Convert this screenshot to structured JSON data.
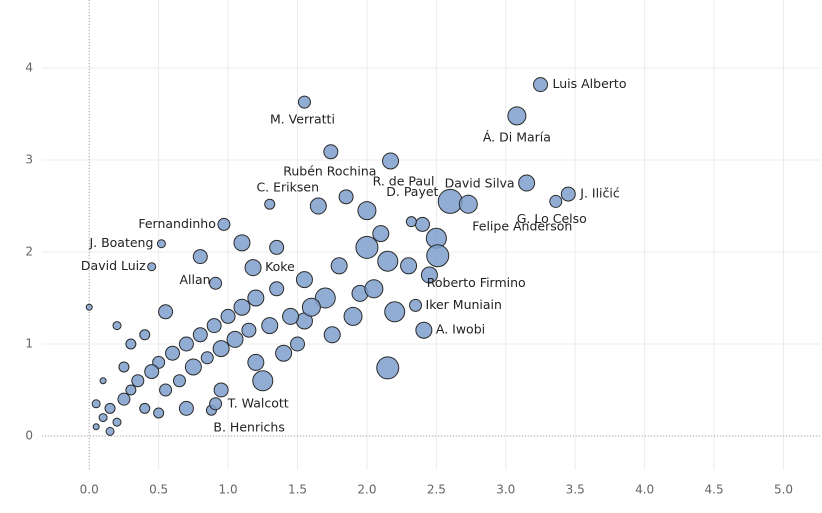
{
  "chart_data": {
    "type": "scatter",
    "color": "#7e9fcd",
    "edge_color": "#2a2a2a",
    "grid": true,
    "xlim": [
      -0.34,
      5.27
    ],
    "ylim": [
      -0.37,
      4.74
    ],
    "xticks": [
      {
        "value": 0,
        "label": "0.0"
      },
      0.5,
      {
        "value": 1,
        "label": "1.0"
      },
      1.5,
      {
        "value": 2,
        "label": "2.0"
      },
      2.5,
      {
        "value": 3,
        "label": "3.0"
      },
      3.5,
      {
        "value": 4,
        "label": "4.0"
      },
      4.5,
      {
        "value": 5,
        "label": "5.0"
      }
    ],
    "yticks": [
      0,
      1,
      2,
      3,
      4
    ],
    "labels": [
      "Luis Alberto",
      "Á. Di María",
      "M. Verratti",
      "Rubén Rochina",
      "R. de Paul",
      "D. Payet",
      "C. Eriksen",
      "David Silva",
      "J. Iličić",
      "G. Lo Celso",
      "Felipe Anderson",
      "Fernandinho",
      "J. Boateng",
      "David Luiz",
      "Allan",
      "Koke",
      "Roberto Firmino",
      "Iker Muniain",
      "A. Iwobi",
      "T. Walcott",
      "B. Henrichs",
      null,
      null,
      null,
      null,
      null,
      null,
      null,
      null,
      null,
      null,
      null,
      null,
      null,
      null,
      null,
      null,
      null,
      null,
      null,
      null,
      null,
      null,
      null,
      null,
      null,
      null,
      null,
      null,
      null,
      null,
      null,
      null,
      null,
      null,
      null,
      null,
      null,
      null,
      null,
      null,
      null,
      null,
      null,
      null,
      null,
      null,
      null,
      null,
      null,
      null,
      null,
      null,
      null,
      null,
      null,
      null,
      null,
      null,
      null,
      null,
      null,
      null,
      null,
      null,
      null,
      null,
      null,
      null
    ],
    "x": [
      3.25,
      3.08,
      1.55,
      1.74,
      2.17,
      2.32,
      1.3,
      3.15,
      3.45,
      3.36,
      2.73,
      0.97,
      0.52,
      0.45,
      0.91,
      1.18,
      2.51,
      2.35,
      2.41,
      0.91,
      0.88,
      0.05,
      0.1,
      0.15,
      0.2,
      0.25,
      0.3,
      0.35,
      0.4,
      0.45,
      0.5,
      0.55,
      0.6,
      0.65,
      0.7,
      0.75,
      0.8,
      0.85,
      0.9,
      0.95,
      1.0,
      1.05,
      1.1,
      1.15,
      1.2,
      1.25,
      1.3,
      1.35,
      1.4,
      1.45,
      1.5,
      1.55,
      1.6,
      1.7,
      1.75,
      1.8,
      1.9,
      2.0,
      2.05,
      2.15,
      2.15,
      2.2,
      2.3,
      2.45,
      2.5,
      2.6,
      2.0,
      1.85,
      1.65,
      1.35,
      1.1,
      0.8,
      0.55,
      0.3,
      0.1,
      0.0,
      0.2,
      0.05,
      0.4,
      0.95,
      0.7,
      1.2,
      0.5,
      0.15,
      0.25,
      2.1,
      1.95,
      1.55,
      2.4
    ],
    "values": [
      3.82,
      3.48,
      3.63,
      3.09,
      2.99,
      2.33,
      2.52,
      2.75,
      2.63,
      2.55,
      2.52,
      2.3,
      2.09,
      1.84,
      1.66,
      1.83,
      1.96,
      1.42,
      1.15,
      0.35,
      0.28,
      0.1,
      0.2,
      0.3,
      0.15,
      0.4,
      0.5,
      0.6,
      0.3,
      0.7,
      0.8,
      0.5,
      0.9,
      0.6,
      1.0,
      0.75,
      1.1,
      0.85,
      1.2,
      0.95,
      1.3,
      1.05,
      1.4,
      1.15,
      1.5,
      0.6,
      1.2,
      1.6,
      0.9,
      1.3,
      1.0,
      1.7,
      1.4,
      1.5,
      1.1,
      1.85,
      1.3,
      2.05,
      1.6,
      1.9,
      0.74,
      1.35,
      1.85,
      1.75,
      2.15,
      2.55,
      2.45,
      2.6,
      2.5,
      2.05,
      2.1,
      1.95,
      1.35,
      1.0,
      0.6,
      1.4,
      1.2,
      0.35,
      1.1,
      0.5,
      0.3,
      0.8,
      0.25,
      0.05,
      0.75,
      2.2,
      1.55,
      1.25,
      2.3
    ],
    "sizes": [
      7,
      9,
      6,
      7,
      8,
      5,
      5,
      8,
      7,
      6,
      9,
      6,
      4,
      4,
      6,
      8,
      11,
      6,
      8,
      6,
      5,
      3,
      4,
      5,
      4,
      6,
      5,
      6,
      5,
      7,
      6,
      6,
      7,
      6,
      7,
      8,
      7,
      6,
      7,
      8,
      7,
      8,
      8,
      7,
      8,
      10,
      8,
      7,
      8,
      8,
      7,
      8,
      9,
      10,
      8,
      8,
      9,
      11,
      9,
      10,
      11,
      10,
      8,
      8,
      10,
      12,
      9,
      7,
      8,
      7,
      8,
      7,
      7,
      5,
      3,
      3,
      4,
      4,
      5,
      7,
      7,
      8,
      5,
      4,
      5,
      8,
      8,
      8,
      7
    ]
  }
}
